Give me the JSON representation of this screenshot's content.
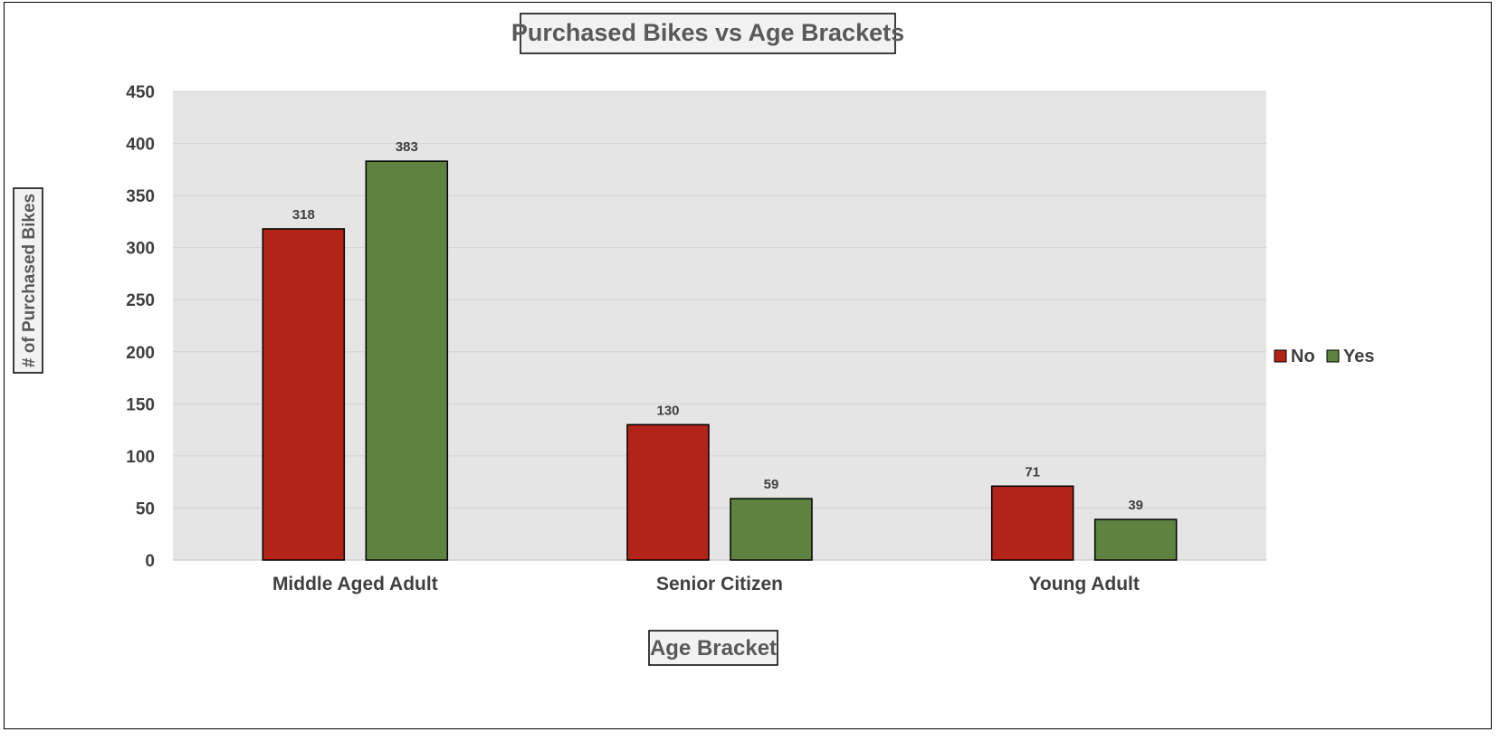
{
  "chart_data": {
    "type": "bar",
    "title": "Purchased Bikes vs Age Brackets",
    "xlabel": "Age Bracket",
    "ylabel": "# of Purchased Bikes",
    "categories": [
      "Middle Aged Adult",
      "Senior Citizen",
      "Young Adult"
    ],
    "series": [
      {
        "name": "No",
        "values": [
          318,
          130,
          71
        ],
        "color": "#b22418"
      },
      {
        "name": "Yes",
        "values": [
          383,
          59,
          39
        ],
        "color": "#5e8240"
      }
    ],
    "ylim": [
      0,
      450
    ],
    "yticks": [
      0,
      50,
      100,
      150,
      200,
      250,
      300,
      350,
      400,
      450
    ],
    "grid": true,
    "plot_background": "#e5e5e5",
    "legend": "right"
  }
}
